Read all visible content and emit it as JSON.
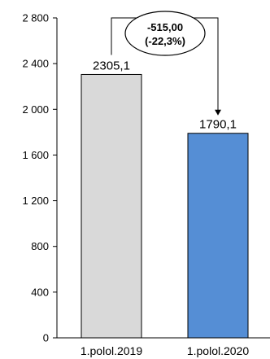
{
  "chart_data": {
    "type": "bar",
    "categories": [
      "1.polol.2019",
      "1.polol.2020"
    ],
    "values": [
      2305.1,
      1790.1
    ],
    "value_labels": [
      "2305,1",
      "1790,1"
    ],
    "bar_colors": [
      "#d9d9d9",
      "#558ed5"
    ],
    "ylim": [
      0,
      2800
    ],
    "yticks": [
      0,
      400,
      800,
      1200,
      1600,
      2000,
      2400,
      2800
    ],
    "ytick_labels": [
      "0",
      "400",
      "800",
      "1 200",
      "1 600",
      "2 000",
      "2 400",
      "2 800"
    ],
    "grid": false,
    "legend": "none",
    "annotation": {
      "difference": -515.0,
      "percent_change": -22.3,
      "line1": "-515,00",
      "line2": "(-22,3%)"
    }
  }
}
